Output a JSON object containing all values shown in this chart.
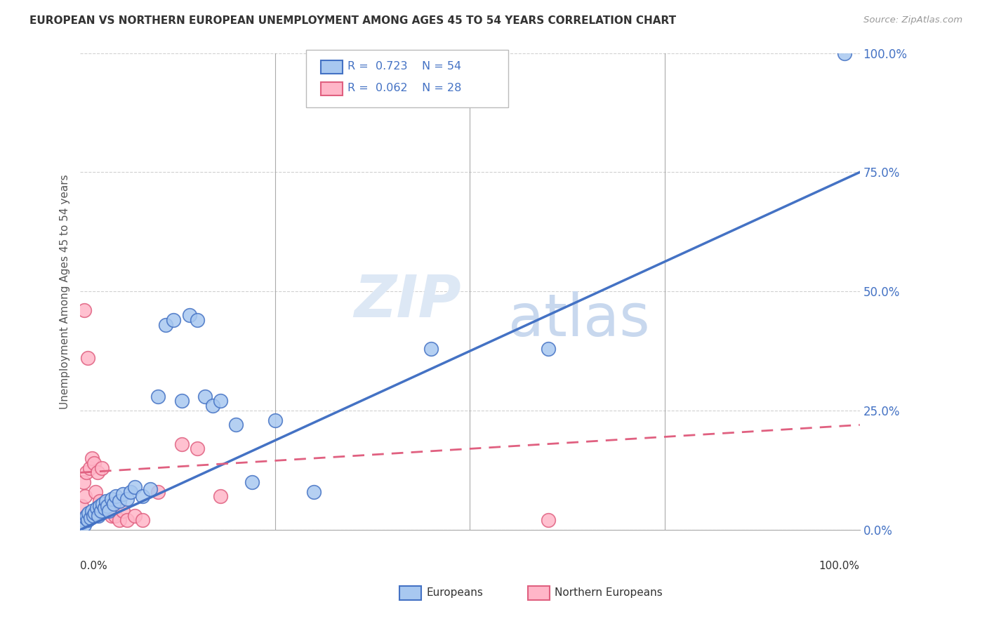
{
  "title": "EUROPEAN VS NORTHERN EUROPEAN UNEMPLOYMENT AMONG AGES 45 TO 54 YEARS CORRELATION CHART",
  "source": "Source: ZipAtlas.com",
  "ylabel": "Unemployment Among Ages 45 to 54 years",
  "ytick_vals": [
    0,
    25,
    50,
    75,
    100
  ],
  "xlim": [
    0,
    100
  ],
  "ylim": [
    0,
    100
  ],
  "european_fill": "#A8C8F0",
  "european_edge": "#4472C4",
  "northern_fill": "#FFB6C8",
  "northern_edge": "#E06080",
  "eu_line_color": "#4472C4",
  "ne_line_color": "#E06080",
  "legend_text_color": "#4472C4",
  "ytick_color": "#4472C4",
  "grid_color": "#cccccc",
  "title_color": "#333333",
  "source_color": "#999999",
  "watermark_zip_color": "#dde8f5",
  "watermark_atlas_color": "#c8d8ee",
  "eu_x": [
    0.2,
    0.3,
    0.5,
    0.7,
    0.8,
    1.0,
    1.1,
    1.3,
    1.5,
    1.7,
    1.9,
    2.1,
    2.3,
    2.5,
    2.7,
    2.9,
    3.1,
    3.3,
    3.5,
    3.7,
    4.0,
    4.3,
    4.6,
    5.0,
    5.5,
    6.0,
    6.5,
    7.0,
    8.0,
    9.0,
    10.0,
    11.0,
    12.0,
    13.0,
    14.0,
    15.0,
    16.0,
    17.0,
    18.0,
    20.0,
    22.0,
    25.0,
    30.0,
    45.0,
    60.0,
    98.0
  ],
  "eu_y": [
    1.5,
    2.0,
    1.0,
    2.5,
    3.0,
    2.0,
    3.5,
    2.5,
    4.0,
    3.0,
    3.5,
    4.5,
    3.0,
    5.0,
    4.0,
    5.5,
    4.5,
    6.0,
    5.0,
    4.0,
    6.5,
    5.5,
    7.0,
    6.0,
    7.5,
    6.5,
    8.0,
    9.0,
    7.0,
    8.5,
    28.0,
    43.0,
    44.0,
    27.0,
    45.0,
    44.0,
    28.0,
    26.0,
    27.0,
    22.0,
    10.0,
    23.0,
    8.0,
    38.0,
    38.0,
    100.0
  ],
  "ne_x": [
    0.2,
    0.4,
    0.5,
    0.6,
    0.8,
    1.0,
    1.2,
    1.5,
    1.8,
    2.0,
    2.2,
    2.5,
    2.8,
    3.0,
    3.5,
    4.0,
    4.5,
    5.0,
    5.5,
    6.0,
    7.0,
    8.0,
    10.0,
    13.0,
    15.0,
    18.0,
    60.0
  ],
  "ne_y": [
    5.0,
    10.0,
    46.0,
    7.0,
    12.0,
    36.0,
    13.0,
    15.0,
    14.0,
    8.0,
    12.0,
    6.0,
    13.0,
    4.0,
    5.0,
    3.0,
    3.0,
    2.0,
    4.0,
    2.0,
    3.0,
    2.0,
    8.0,
    18.0,
    17.0,
    7.0,
    2.0
  ],
  "eu_reg_x0": 0,
  "eu_reg_y0": 0,
  "eu_reg_x1": 100,
  "eu_reg_y1": 75,
  "ne_reg_x0": 0,
  "ne_reg_y0": 12,
  "ne_reg_x1": 100,
  "ne_reg_y1": 22
}
